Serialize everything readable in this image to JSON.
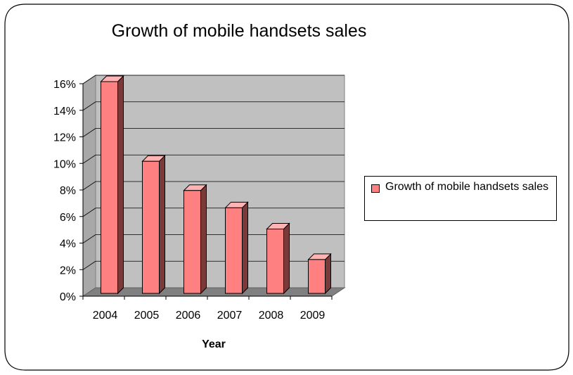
{
  "chart_data": {
    "type": "bar",
    "title": "Growth of mobile handsets sales",
    "xlabel": "Year",
    "ylabel": "",
    "categories": [
      "2004",
      "2005",
      "2006",
      "2007",
      "2008",
      "2009"
    ],
    "series": [
      {
        "name": "Growth of mobile handsets sales",
        "values": [
          16,
          10,
          7.8,
          6.5,
          4.9,
          2.6
        ]
      }
    ],
    "ylim": [
      0,
      16
    ],
    "y_ticks": [
      0,
      2,
      4,
      6,
      8,
      10,
      12,
      14,
      16
    ],
    "y_tick_format": "%",
    "grid": true,
    "legend_position": "right",
    "style": "3d",
    "colors": {
      "bar_front": "#ff8080",
      "bar_side": "#7a3a3a",
      "bar_top": "#ffb3b3",
      "back_wall": "#c0c0c0",
      "side_wall": "#a8a8a8",
      "floor": "#808080"
    }
  }
}
